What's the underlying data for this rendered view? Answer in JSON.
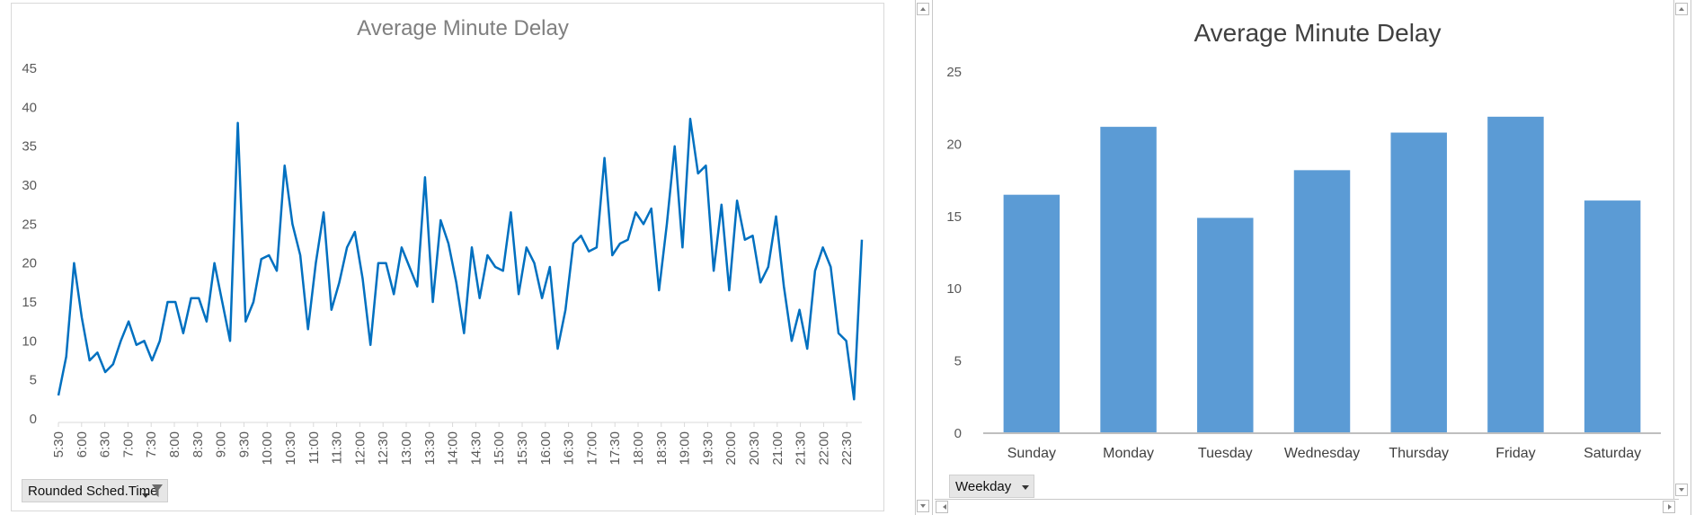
{
  "chart_data": [
    {
      "type": "line",
      "title": "Average Minute Delay",
      "series_color": "#0070c0",
      "ylim": [
        0,
        45
      ],
      "yticks": [
        0,
        5,
        10,
        15,
        20,
        25,
        30,
        35,
        40,
        45
      ],
      "xtick_labels": [
        "5:30",
        "6:00",
        "6:30",
        "7:00",
        "7:30",
        "8:00",
        "8:30",
        "9:00",
        "9:30",
        "10:00",
        "10:30",
        "11:00",
        "11:30",
        "12:00",
        "12:30",
        "13:00",
        "13:30",
        "14:00",
        "14:30",
        "15:00",
        "15:30",
        "16:00",
        "16:30",
        "17:00",
        "17:30",
        "18:00",
        "18:30",
        "19:00",
        "19:30",
        "20:00",
        "20:30",
        "21:00",
        "21:30",
        "22:00",
        "22:30"
      ],
      "values": [
        3,
        8,
        20,
        13,
        7.5,
        8.5,
        6,
        7,
        10,
        12.5,
        9.5,
        10,
        7.5,
        10,
        15,
        15,
        11,
        15.5,
        15.5,
        12.5,
        20,
        15,
        10,
        38,
        12.5,
        15,
        20.5,
        21,
        19,
        32.5,
        25,
        21,
        11.5,
        20,
        26.5,
        14,
        17.5,
        22,
        24,
        18,
        9.5,
        20,
        20,
        16,
        22,
        19.5,
        17,
        31,
        15,
        25.5,
        22.5,
        17.5,
        11,
        22,
        15.5,
        21,
        19.5,
        19,
        26.5,
        16,
        22,
        20,
        15.5,
        19.5,
        9,
        14,
        22.5,
        23.5,
        21.5,
        22,
        33.5,
        21,
        22.5,
        23,
        26.5,
        25,
        27,
        16.5,
        25,
        35,
        22,
        38.5,
        31.5,
        32.5,
        19,
        27.5,
        16.5,
        28,
        23,
        23.5,
        17.5,
        19.5,
        26,
        17,
        10,
        14,
        9,
        19,
        22,
        19.5,
        11,
        10,
        2.5,
        23
      ]
    },
    {
      "type": "bar",
      "title": "Average Minute Delay",
      "bar_color": "#5b9bd5",
      "ylim": [
        0,
        25
      ],
      "yticks": [
        0,
        5,
        10,
        15,
        20,
        25
      ],
      "categories": [
        "Sunday",
        "Monday",
        "Tuesday",
        "Wednesday",
        "Thursday",
        "Friday",
        "Saturday"
      ],
      "values": [
        16.5,
        21.2,
        14.9,
        18.2,
        20.8,
        21.9,
        16.1
      ]
    }
  ],
  "left_field_button": {
    "label": "Rounded Sched.Time",
    "icon": "filter-icon"
  },
  "right_field_button": {
    "label": "Weekday",
    "icon": "chevron-down-icon"
  }
}
